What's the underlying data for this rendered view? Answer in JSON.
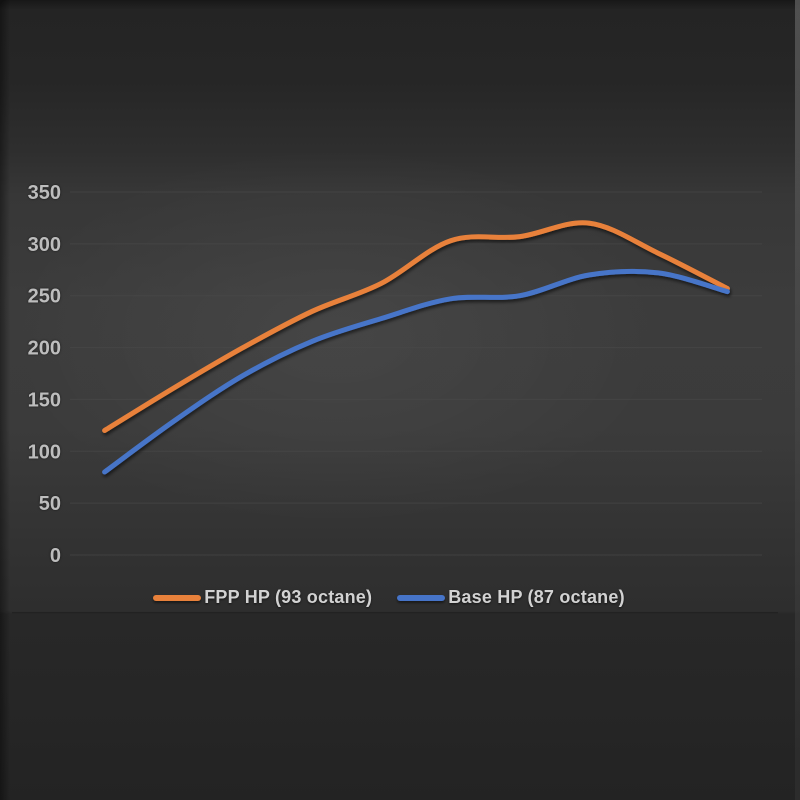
{
  "chart_data": {
    "type": "line",
    "title": "",
    "xlabel": "",
    "ylabel": "",
    "x_tick_labels": [],
    "yticks": [
      0,
      50,
      100,
      150,
      200,
      250,
      300,
      350
    ],
    "ylim": [
      0,
      375
    ],
    "grid": "horizontal",
    "smooth_lines": true,
    "legend_position": "bottom-center",
    "series": [
      {
        "name": "FPP HP (93 octane)",
        "color": "#E8813B",
        "values": [
          120,
          161,
          200,
          235,
          262,
          303,
          307,
          320,
          291,
          257
        ]
      },
      {
        "name": "Base HP (87 octane)",
        "color": "#4674C8",
        "values": [
          80,
          129,
          173,
          206,
          228,
          247,
          250,
          270,
          272,
          254
        ]
      }
    ]
  },
  "colors": {
    "background": "#333333",
    "gridline": "#4a4a4a",
    "tick_text": "#bdbdbd",
    "legend_text": "#d2d2d2"
  }
}
